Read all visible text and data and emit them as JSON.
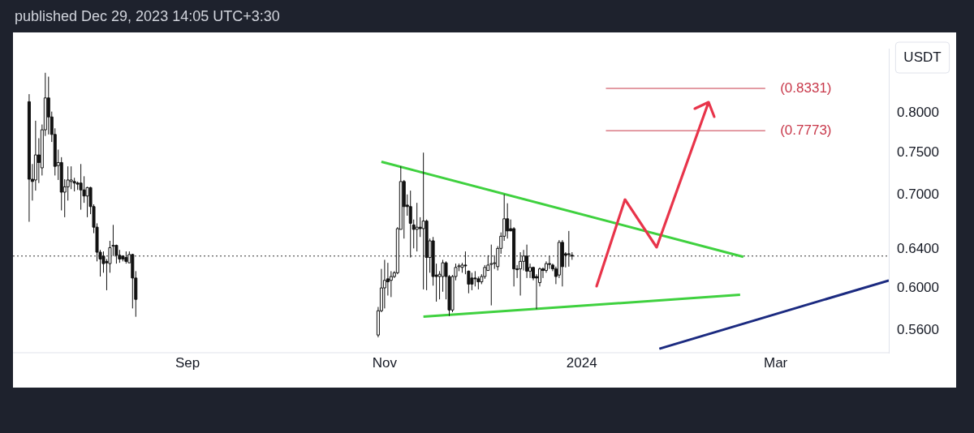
{
  "chart_data": {
    "type": "candlestick",
    "title": "published Dec 29, 2023 14:05 UTC+3:30",
    "ylabel": "USDT",
    "x": [
      "2023-07-14",
      "2023-07-15",
      "2023-07-16",
      "2023-07-17",
      "2023-07-18",
      "2023-07-19",
      "2023-07-20",
      "2023-07-21",
      "2023-07-22",
      "2023-07-23",
      "2023-07-24",
      "2023-07-25",
      "2023-07-26",
      "2023-07-27",
      "2023-07-28",
      "2023-07-29",
      "2023-07-30",
      "2023-07-31",
      "2023-08-01",
      "2023-08-02",
      "2023-08-03",
      "2023-08-04",
      "2023-08-05",
      "2023-08-06",
      "2023-08-07",
      "2023-08-08",
      "2023-08-09",
      "2023-08-10",
      "2023-08-11",
      "2023-08-12",
      "2023-08-13",
      "2023-08-14",
      "2023-08-15",
      "2023-08-16",
      "2023-10-30",
      "2023-10-31",
      "2023-11-01",
      "2023-11-02",
      "2023-11-03",
      "2023-11-04",
      "2023-11-05",
      "2023-11-06",
      "2023-11-07",
      "2023-11-08",
      "2023-11-09",
      "2023-11-10",
      "2023-11-11",
      "2023-11-12",
      "2023-11-13",
      "2023-11-14",
      "2023-11-15",
      "2023-11-16",
      "2023-11-17",
      "2023-11-18",
      "2023-11-19",
      "2023-11-20",
      "2023-11-21",
      "2023-11-22",
      "2023-11-23",
      "2023-11-24",
      "2023-11-25",
      "2023-11-26",
      "2023-11-27",
      "2023-11-28",
      "2023-11-29",
      "2023-11-30",
      "2023-12-01",
      "2023-12-02",
      "2023-12-03",
      "2023-12-04",
      "2023-12-05",
      "2023-12-06",
      "2023-12-07",
      "2023-12-08",
      "2023-12-09",
      "2023-12-10",
      "2023-12-11",
      "2023-12-12",
      "2023-12-13",
      "2023-12-14",
      "2023-12-15",
      "2023-12-16",
      "2023-12-17",
      "2023-12-18",
      "2023-12-19",
      "2023-12-20",
      "2023-12-21",
      "2023-12-22",
      "2023-12-23",
      "2023-12-24",
      "2023-12-25",
      "2023-12-26",
      "2023-12-27",
      "2023-12-28",
      "2023-12-29"
    ],
    "ohlc": [
      [
        0.8151,
        0.8253,
        0.6694,
        0.7178
      ],
      [
        0.7178,
        0.7359,
        0.6931,
        0.7151
      ],
      [
        0.7169,
        0.7901,
        0.7045,
        0.747
      ],
      [
        0.747,
        0.7677,
        0.7133,
        0.7377
      ],
      [
        0.7313,
        0.7852,
        0.7222,
        0.7784
      ],
      [
        0.7784,
        0.8547,
        0.7706,
        0.8202
      ],
      [
        0.8202,
        0.8493,
        0.7725,
        0.795
      ],
      [
        0.795,
        0.802,
        0.763,
        0.7725
      ],
      [
        0.7725,
        0.7803,
        0.7222,
        0.7331
      ],
      [
        0.734,
        0.7535,
        0.7169,
        0.7377
      ],
      [
        0.7377,
        0.7442,
        0.682,
        0.7027
      ],
      [
        0.7027,
        0.7178,
        0.6744,
        0.7089
      ],
      [
        0.7089,
        0.7331,
        0.6931,
        0.7169
      ],
      [
        0.7151,
        0.7331,
        0.7062,
        0.7169
      ],
      [
        0.7151,
        0.7195,
        0.7036,
        0.7133
      ],
      [
        0.7133,
        0.7151,
        0.7053,
        0.712
      ],
      [
        0.7133,
        0.7359,
        0.6828,
        0.7053
      ],
      [
        0.7053,
        0.7213,
        0.6905,
        0.6983
      ],
      [
        0.6983,
        0.7089,
        0.6744,
        0.708
      ],
      [
        0.708,
        0.7089,
        0.6778,
        0.6863
      ],
      [
        0.6863,
        0.6888,
        0.657,
        0.6635
      ],
      [
        0.6635,
        0.6677,
        0.6273,
        0.6368
      ],
      [
        0.6368,
        0.6392,
        0.6119,
        0.6297
      ],
      [
        0.6328,
        0.6376,
        0.6157,
        0.625
      ],
      [
        0.6273,
        0.6297,
        0.5983,
        0.6258
      ],
      [
        0.625,
        0.6488,
        0.6157,
        0.6416
      ],
      [
        0.6432,
        0.666,
        0.6328,
        0.644
      ],
      [
        0.644,
        0.6448,
        0.625,
        0.6336
      ],
      [
        0.6336,
        0.6392,
        0.6258,
        0.6297
      ],
      [
        0.6328,
        0.6336,
        0.6273,
        0.6297
      ],
      [
        0.6313,
        0.6376,
        0.625,
        0.6273
      ],
      [
        0.6258,
        0.6376,
        0.6258,
        0.6344
      ],
      [
        0.6344,
        0.6352,
        0.5807,
        0.6104
      ],
      [
        0.6104,
        0.6173,
        0.5728,
        0.5894
      ],
      [
        0.5559,
        0.5821,
        0.5538,
        0.5785
      ],
      [
        0.5785,
        0.6196,
        0.5771,
        0.6006
      ],
      [
        0.6006,
        0.6289,
        0.5807,
        0.6081
      ],
      [
        0.6096,
        0.6258,
        0.5931,
        0.6066
      ],
      [
        0.6081,
        0.6173,
        0.5916,
        0.6119
      ],
      [
        0.6119,
        0.6173,
        0.6104,
        0.6157
      ],
      [
        0.6157,
        0.6635,
        0.6142,
        0.6619
      ],
      [
        0.6611,
        0.7331,
        0.6611,
        0.7151
      ],
      [
        0.7151,
        0.7169,
        0.6512,
        0.6863
      ],
      [
        0.688,
        0.7001,
        0.6761,
        0.6863
      ],
      [
        0.6863,
        0.7045,
        0.6313,
        0.6677
      ],
      [
        0.666,
        0.6719,
        0.6408,
        0.6611
      ],
      [
        0.6611,
        0.6905,
        0.6376,
        0.6635
      ],
      [
        0.6635,
        0.6744,
        0.6529,
        0.6619
      ],
      [
        0.6619,
        0.7498,
        0.5991,
        0.6702
      ],
      [
        0.6702,
        0.6719,
        0.5983,
        0.6313
      ],
      [
        0.6313,
        0.6512,
        0.6157,
        0.6488
      ],
      [
        0.6488,
        0.6529,
        0.6028,
        0.6119
      ],
      [
        0.6134,
        0.625,
        0.5872,
        0.6119
      ],
      [
        0.6119,
        0.6173,
        0.5894,
        0.6142
      ],
      [
        0.6119,
        0.6289,
        0.5968,
        0.6258
      ],
      [
        0.6258,
        0.6273,
        0.5894,
        0.6119
      ],
      [
        0.6119,
        0.6134,
        0.5735,
        0.5792
      ],
      [
        0.5792,
        0.6134,
        0.5771,
        0.6119
      ],
      [
        0.6119,
        0.625,
        0.6081,
        0.6211
      ],
      [
        0.6219,
        0.625,
        0.6173,
        0.6227
      ],
      [
        0.6211,
        0.6258,
        0.6157,
        0.6235
      ],
      [
        0.6235,
        0.6376,
        0.6142,
        0.6227
      ],
      [
        0.6173,
        0.618,
        0.5953,
        0.6043
      ],
      [
        0.6104,
        0.6157,
        0.5983,
        0.6043
      ],
      [
        0.6104,
        0.6173,
        0.602,
        0.6096
      ],
      [
        0.6096,
        0.6119,
        0.5991,
        0.6066
      ],
      [
        0.6066,
        0.6142,
        0.6043,
        0.6119
      ],
      [
        0.6119,
        0.6235,
        0.6096,
        0.6211
      ],
      [
        0.618,
        0.6336,
        0.618,
        0.6235
      ],
      [
        0.6242,
        0.6448,
        0.5836,
        0.625
      ],
      [
        0.625,
        0.6336,
        0.6196,
        0.6258
      ],
      [
        0.6219,
        0.6432,
        0.618,
        0.6408
      ],
      [
        0.6408,
        0.6578,
        0.6352,
        0.6537
      ],
      [
        0.6537,
        0.7001,
        0.6488,
        0.6727
      ],
      [
        0.6727,
        0.69,
        0.6512,
        0.6594
      ],
      [
        0.6619,
        0.6719,
        0.6594,
        0.6594
      ],
      [
        0.6619,
        0.6635,
        0.602,
        0.6196
      ],
      [
        0.6196,
        0.6235,
        0.6104,
        0.6188
      ],
      [
        0.6196,
        0.6368,
        0.5931,
        0.6273
      ],
      [
        0.6273,
        0.6392,
        0.618,
        0.6328
      ],
      [
        0.6328,
        0.6448,
        0.6104,
        0.6173
      ],
      [
        0.6173,
        0.625,
        0.6104,
        0.6211
      ],
      [
        0.6211,
        0.6219,
        0.6081,
        0.6104
      ],
      [
        0.6119,
        0.6142,
        0.58,
        0.6104
      ],
      [
        0.6058,
        0.6211,
        0.602,
        0.6196
      ],
      [
        0.6196,
        0.6211,
        0.6104,
        0.618
      ],
      [
        0.618,
        0.6273,
        0.6157,
        0.625
      ],
      [
        0.625,
        0.6328,
        0.6196,
        0.6242
      ],
      [
        0.6235,
        0.625,
        0.6173,
        0.6196
      ],
      [
        0.6196,
        0.6219,
        0.6043,
        0.6119
      ],
      [
        0.6134,
        0.6496,
        0.6104,
        0.6472
      ],
      [
        0.6472,
        0.6496,
        0.602,
        0.6219
      ],
      [
        0.6352,
        0.6368,
        0.6211,
        0.6336
      ],
      [
        0.6352,
        0.6594,
        0.6219,
        0.6344
      ],
      [
        0.6336,
        0.6368,
        0.6289,
        0.6328
      ]
    ],
    "series": [
      {
        "type": "line",
        "color": "#3fd13f",
        "x": [
          "2023-10-31",
          "2024-02-20"
        ],
        "values": [
          0.7387,
          0.632
        ]
      },
      {
        "type": "line",
        "color": "#3fd13f",
        "x": [
          "2023-11-13",
          "2024-02-19"
        ],
        "values": [
          0.5729,
          0.5938
        ]
      },
      {
        "type": "line",
        "color": "#1b2a80",
        "x": [
          "2024-01-25",
          "2024-04-05"
        ],
        "values": [
          0.5435,
          0.608
        ]
      }
    ],
    "ref_lines": [
      {
        "axis": "y",
        "value": 0.8331,
        "label": "(0.8331)",
        "color": "#c8384a"
      },
      {
        "axis": "y",
        "value": 0.7773,
        "label": "(0.7773)",
        "color": "#c8384a"
      },
      {
        "axis": "y",
        "value": 0.6328,
        "color": "#333333",
        "line_style": "dotted"
      }
    ],
    "log": "y",
    "grid": false,
    "xlim": [
      "2023-07-09",
      "2024-04-05"
    ],
    "xticks": [
      {
        "value": "2023-09-01",
        "label": "Sep"
      },
      {
        "value": "2023-11-01",
        "label": "Nov"
      },
      {
        "value": "2024-01-01",
        "label": "2024"
      },
      {
        "value": "2024-03-01",
        "label": "Mar"
      }
    ],
    "ylim": [
      0.5435,
      0.889
    ],
    "yticks": [
      {
        "value": 0.56,
        "label": "0.5600"
      },
      {
        "value": 0.6,
        "label": "0.6000"
      },
      {
        "value": 0.64,
        "label": "0.6400"
      },
      {
        "value": 0.7,
        "label": "0.7000"
      },
      {
        "value": 0.75,
        "label": "0.7500"
      },
      {
        "value": 0.8,
        "label": "0.8000"
      }
    ]
  }
}
